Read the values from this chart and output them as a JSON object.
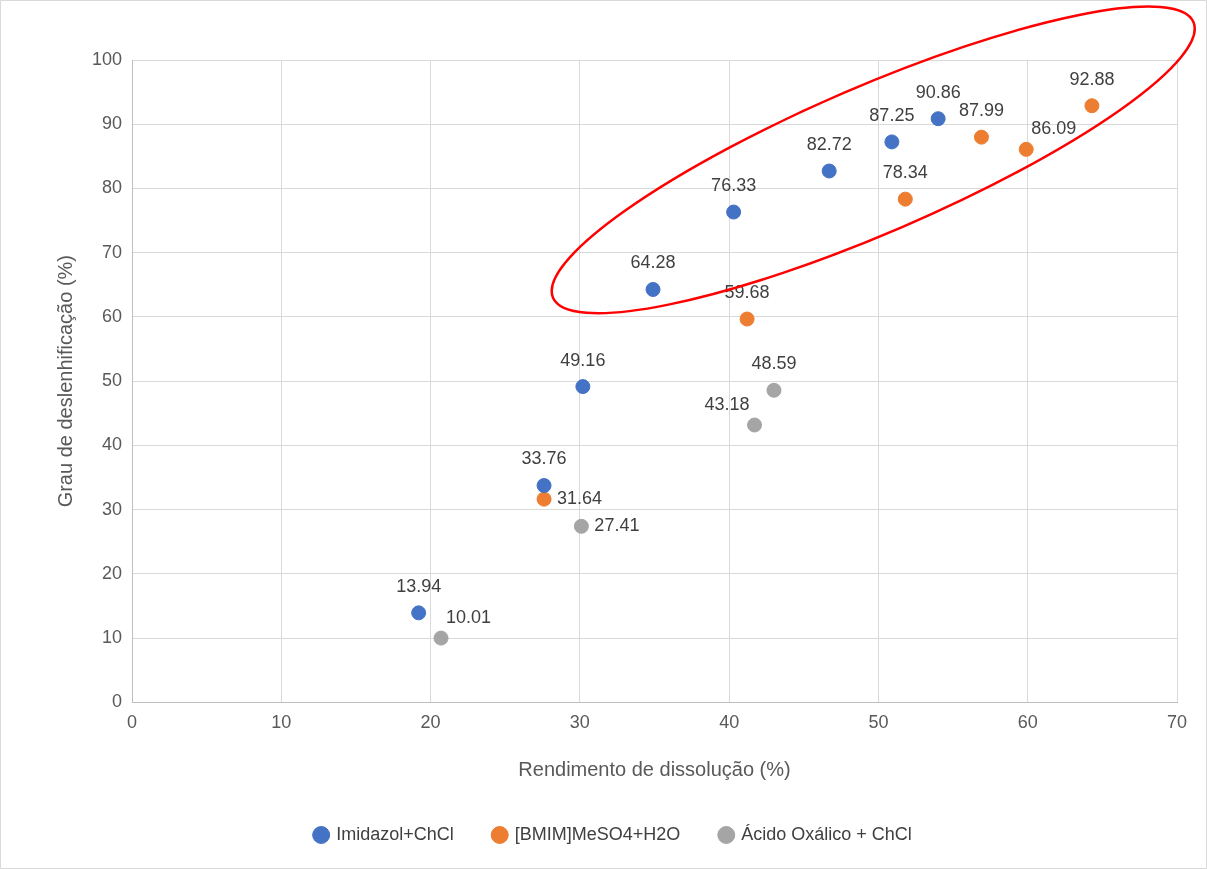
{
  "chart_data": {
    "type": "scatter",
    "xlabel": "Rendimento de dissolução (%)",
    "ylabel": "Grau de deslenhificação (%)",
    "xlim": [
      0,
      70
    ],
    "xticks": [
      0,
      10,
      20,
      30,
      40,
      50,
      60,
      70
    ],
    "ylim": [
      0,
      100
    ],
    "yticks": [
      0,
      10,
      20,
      30,
      40,
      50,
      60,
      70,
      80,
      90,
      100
    ],
    "grid": true,
    "legend": "bottom",
    "marker": "circle",
    "data_labels": true,
    "series": [
      {
        "name": "Imidazol+ChCl",
        "color": "#4472c4",
        "x": [
          19.2,
          27.6,
          30.2,
          34.9,
          40.3,
          46.7,
          50.9,
          54.0
        ],
        "values": [
          13.94,
          33.76,
          49.16,
          64.28,
          76.33,
          82.72,
          87.25,
          90.86
        ]
      },
      {
        "name": "[BMIM]MeSO4+H2O",
        "color": "#ed7d31",
        "x": [
          27.6,
          41.2,
          51.8,
          56.9,
          59.9,
          64.3
        ],
        "values": [
          31.64,
          59.68,
          78.34,
          87.99,
          86.09,
          92.88
        ]
      },
      {
        "name": "Ácido Oxálico + ChCl",
        "color": "#a5a5a5",
        "x": [
          20.7,
          30.1,
          41.7,
          43.0
        ],
        "values": [
          10.01,
          27.41,
          43.18,
          48.59
        ]
      }
    ]
  }
}
